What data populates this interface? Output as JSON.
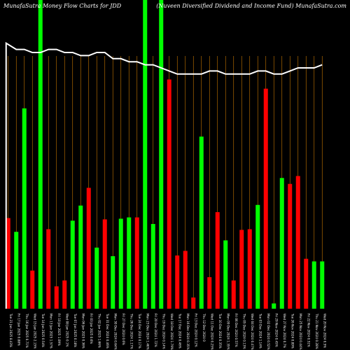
{
  "header": {
    "left": "MunafaSutra  Money Flow  Charts for JDD",
    "right": "(Nuveen  Diversified Dividend and Income    Fund) MunafaSutra.com"
  },
  "colors": {
    "background": "#000000",
    "up_bar": "#00ff00",
    "down_bar": "#ff0000",
    "grid": "#cc7a00",
    "line": "#ffffff",
    "label": "#ffffff"
  },
  "chart_data": {
    "type": "bar",
    "title": "",
    "categories": [
      "Tue 21 Jan 2025 8.43%",
      "Fri 17 Jan 2025 0.88%",
      "Thu 16 Jan 2025 0.71%",
      "Wed 15 Jan 2025 2.15%",
      "Tue 14 Jan 2025 0.54%",
      "Mon 13 Jan 2025 1.57%",
      "Fri 10 Jan 2025 1.09%",
      "Wed 08 Jan 2025 0.1%",
      "Tue 07 Jan 2025 0.18%",
      "Mon 06 Jan 2025 0.36%",
      "Fri 03 Jan 2025 0.6%",
      "Thu 02 Jan 2025 1.66%",
      "Tue 31 Dec 2024 0.46%",
      "Mon 30 Dec 2024 0.64%",
      "Fri 27 Dec 2024 0.6%",
      "Thu 26 Dec 2024 1.17%",
      "Tue 24 Dec 2024 0.17%",
      "Mon 23 Dec 2024 1.46%",
      "Fri 20 Dec 2024 1.72%",
      "Thu 19 Dec 2024 0.14%",
      "Wed 18 Dec 2024 1.79%",
      "Tue 17 Dec 2024 0.46%",
      "Mon 16 Dec 2024 0.35%",
      "Fri 13 Dec 2024 0.12%",
      "Thu 12 Dec 2024 0",
      "Wed 11 Dec 2024 0.25%",
      "Tue 10 Dec 2024 0.35%",
      "Mon 09 Dec 2024 1.35%",
      "Fri 06 Dec 2024 0.57%",
      "Thu 05 Dec 2024 0.13%",
      "Wed 04 Dec 2024 0.47%",
      "Tue 03 Dec 2024 1.14%",
      "Mon 02 Dec 2024 0.52%",
      "Fri 29 Nov 2024 0.45%",
      "Wed 27 Nov 2024 0.7%",
      "Tue 26 Nov 2024 0.89%",
      "Mon 25 Nov 2024 0.44%",
      "Fri 22 Nov 2024 0.51%",
      "Thu 21 Nov 2024 0.28%",
      "Wed 20 Nov 2024 0.5%"
    ],
    "values": [
      138,
      117,
      305,
      58,
      470,
      121,
      34,
      43,
      134,
      157,
      184,
      93,
      136,
      80,
      137,
      139,
      139,
      470,
      129,
      470,
      349,
      81,
      88,
      17,
      262,
      48,
      147,
      104,
      43,
      120,
      121,
      158,
      335,
      8,
      199,
      190,
      202,
      76,
      72,
      72
    ],
    "colors": [
      "red",
      "green",
      "green",
      "red",
      "green",
      "red",
      "red",
      "red",
      "green",
      "green",
      "red",
      "green",
      "red",
      "green",
      "green",
      "green",
      "red",
      "green",
      "green",
      "green",
      "red",
      "red",
      "red",
      "red",
      "green",
      "red",
      "red",
      "green",
      "red",
      "red",
      "red",
      "green",
      "red",
      "green",
      "green",
      "red",
      "red",
      "red",
      "green",
      "green"
    ],
    "line": [
      0.86,
      0.84,
      0.84,
      0.83,
      0.83,
      0.84,
      0.84,
      0.83,
      0.83,
      0.82,
      0.82,
      0.83,
      0.83,
      0.81,
      0.81,
      0.8,
      0.8,
      0.79,
      0.79,
      0.78,
      0.77,
      0.76,
      0.76,
      0.76,
      0.76,
      0.77,
      0.77,
      0.76,
      0.76,
      0.76,
      0.76,
      0.77,
      0.77,
      0.76,
      0.76,
      0.77,
      0.78,
      0.78,
      0.78,
      0.79
    ],
    "ylim": [
      0,
      470
    ],
    "grid": "vertical",
    "legend": "none"
  }
}
